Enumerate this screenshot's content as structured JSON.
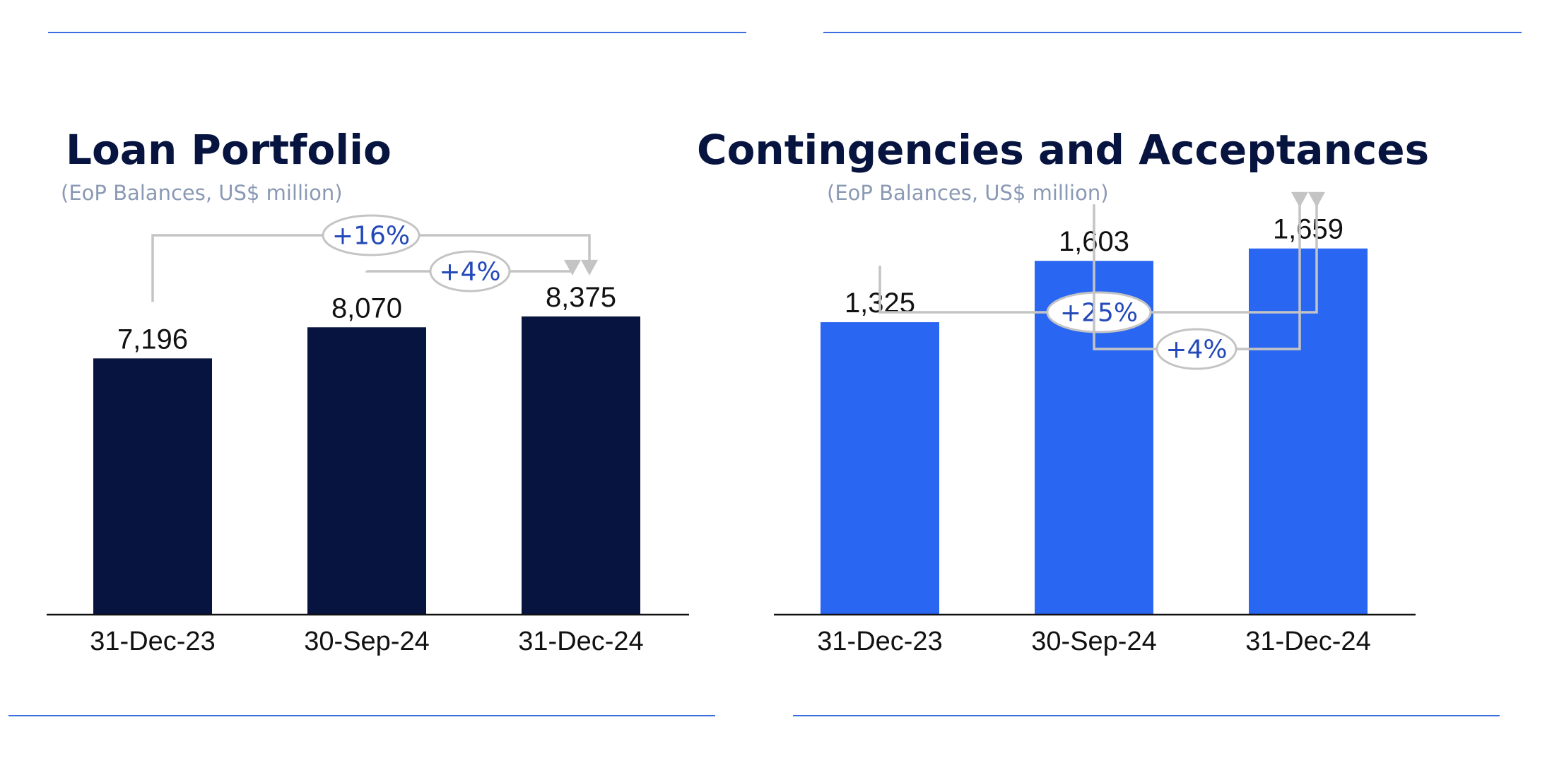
{
  "chart_data": [
    {
      "type": "bar",
      "title": "Loan Portfolio",
      "subtitle": "(EoP Balances, US$ million)",
      "categories": [
        "31-Dec-23",
        "30-Sep-24",
        "31-Dec-24"
      ],
      "values": [
        7196,
        8070,
        8375
      ],
      "value_labels": [
        "7,196",
        "8,070",
        "8,375"
      ],
      "bar_color": "#06143f",
      "ylim": [
        0,
        10000
      ],
      "grid": false,
      "growth_annotations": [
        {
          "from": "31-Dec-23",
          "to": "31-Dec-24",
          "label": "+16%"
        },
        {
          "from": "30-Sep-24",
          "to": "31-Dec-24",
          "label": "+4%"
        }
      ]
    },
    {
      "type": "bar",
      "title": "Contingencies and Acceptances",
      "subtitle": "(EoP Balances, US$ million)",
      "categories": [
        "31-Dec-23",
        "30-Sep-24",
        "31-Dec-24"
      ],
      "values": [
        1325,
        1603,
        1659
      ],
      "value_labels": [
        "1,325",
        "1,603",
        "1,659"
      ],
      "bar_color": "#2966f2",
      "ylim": [
        0,
        2000
      ],
      "grid": false,
      "growth_annotations": [
        {
          "from": "31-Dec-23",
          "to": "31-Dec-24",
          "label": "+25%"
        },
        {
          "from": "30-Sep-24",
          "to": "31-Dec-24",
          "label": "+4%"
        }
      ]
    }
  ]
}
